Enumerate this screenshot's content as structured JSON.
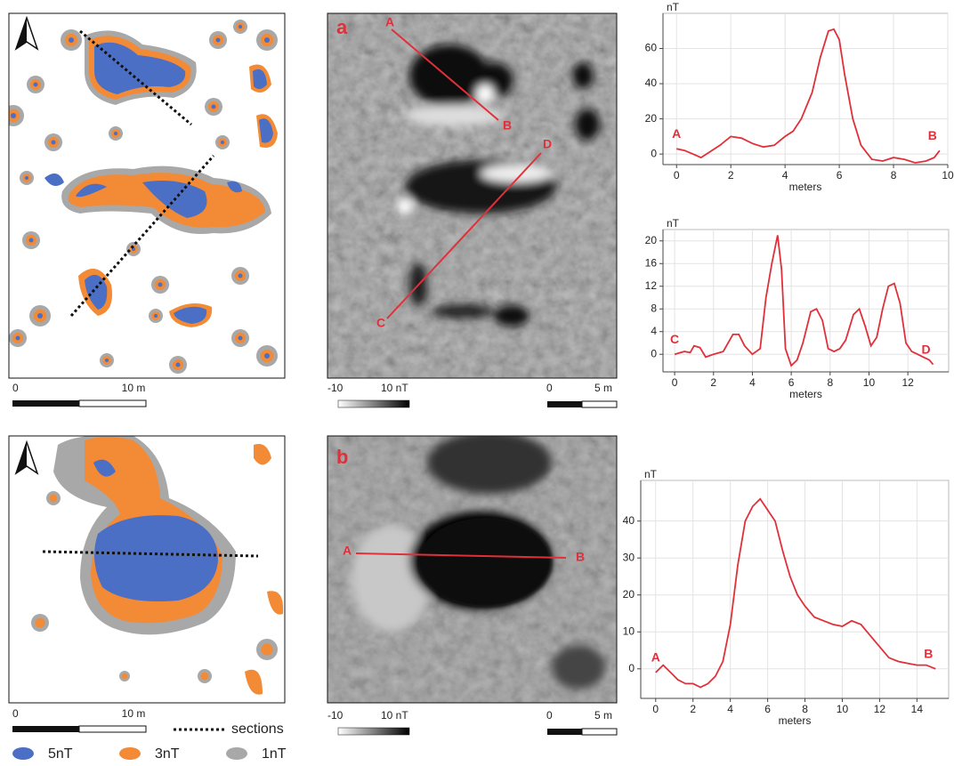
{
  "maps": {
    "panel_labels": [
      "a",
      "b"
    ],
    "sections_top": [
      "A",
      "B",
      "C",
      "D"
    ],
    "sections_bottom": [
      "A",
      "B"
    ],
    "scale_map": [
      "0",
      "10 m"
    ],
    "scale_image": [
      "0",
      "5 m"
    ],
    "color_scale": [
      "-10",
      "10 nT"
    ],
    "sections_label": "sections",
    "legend": [
      {
        "name": "5nT",
        "color": "#4a6fc4"
      },
      {
        "name": "3nT",
        "color": "#f38a35"
      },
      {
        "name": "1nT",
        "color": "#a8a8a8"
      }
    ]
  },
  "chart_data": [
    {
      "type": "line",
      "y_label": "nT",
      "x_label": "meters",
      "color": "#e0303a",
      "annotations": [
        "A",
        "B"
      ],
      "x": [
        0,
        0.3,
        0.6,
        0.9,
        1.2,
        1.6,
        2,
        2.4,
        2.8,
        3.2,
        3.6,
        4,
        4.3,
        4.6,
        5,
        5.3,
        5.6,
        5.8,
        6,
        6.2,
        6.5,
        6.8,
        7.2,
        7.6,
        8,
        8.4,
        8.8,
        9.2,
        9.5,
        9.7
      ],
      "values": [
        3,
        2,
        0,
        -2,
        1,
        5,
        10,
        9,
        6,
        4,
        5,
        10,
        13,
        20,
        35,
        55,
        70,
        71,
        65,
        45,
        20,
        5,
        -3,
        -4,
        -2,
        -3,
        -5,
        -4,
        -2,
        2
      ],
      "xlim": [
        -0.5,
        10
      ],
      "ylim": [
        -6,
        80
      ],
      "xticks": [
        0,
        2,
        4,
        6,
        8,
        10
      ],
      "yticks": [
        0,
        20,
        40,
        60
      ],
      "grid": true
    },
    {
      "type": "line",
      "y_label": "nT",
      "x_label": "meters",
      "color": "#e0303a",
      "annotations": [
        "C",
        "D"
      ],
      "x": [
        0,
        0.5,
        0.8,
        1,
        1.3,
        1.6,
        2,
        2.5,
        3,
        3.3,
        3.6,
        4,
        4.4,
        4.7,
        5,
        5.3,
        5.5,
        5.7,
        6,
        6.3,
        6.6,
        7,
        7.3,
        7.6,
        7.9,
        8.2,
        8.5,
        8.8,
        9.2,
        9.5,
        9.8,
        10.1,
        10.4,
        10.7,
        11,
        11.3,
        11.6,
        11.9,
        12.2,
        12.5,
        12.8,
        13.1,
        13.3
      ],
      "values": [
        0,
        0.5,
        0.3,
        1.5,
        1.2,
        -0.5,
        0,
        0.5,
        3.5,
        3.5,
        1.5,
        0,
        1,
        10,
        16,
        21,
        15,
        1,
        -2,
        -1,
        2,
        7.5,
        8,
        6,
        1,
        0.5,
        1,
        2.5,
        7,
        8,
        5,
        1.5,
        3,
        8,
        12,
        12.5,
        9,
        2,
        0.5,
        0,
        -0.5,
        -1,
        -1.8
      ],
      "xlim": [
        -0.6,
        14.1
      ],
      "ylim": [
        -3.1,
        22
      ],
      "xticks": [
        0,
        2,
        4,
        6,
        8,
        10,
        12
      ],
      "yticks": [
        0,
        4,
        8,
        12,
        16,
        20
      ],
      "grid": true
    },
    {
      "type": "line",
      "y_label": "nT",
      "x_label": "meters",
      "color": "#e0303a",
      "annotations": [
        "A",
        "B"
      ],
      "x": [
        0,
        0.4,
        0.8,
        1.2,
        1.6,
        2,
        2.4,
        2.8,
        3.2,
        3.6,
        4,
        4.4,
        4.8,
        5.2,
        5.6,
        6,
        6.4,
        6.8,
        7.2,
        7.6,
        8,
        8.5,
        9,
        9.5,
        10,
        10.5,
        11,
        11.5,
        12,
        12.5,
        13,
        13.5,
        14,
        14.5,
        15
      ],
      "values": [
        -1,
        1,
        -1,
        -3,
        -4,
        -4,
        -5,
        -4,
        -2,
        2,
        12,
        28,
        40,
        44,
        46,
        43,
        40,
        32,
        25,
        20,
        17,
        14,
        13,
        12,
        11.5,
        13,
        12,
        9,
        6,
        3,
        2,
        1.5,
        1,
        1,
        0
      ],
      "xlim": [
        -0.8,
        15.7
      ],
      "ylim": [
        -8,
        51
      ],
      "xticks": [
        0,
        2,
        4,
        6,
        8,
        10,
        12,
        14
      ],
      "yticks": [
        0,
        10,
        20,
        30,
        40
      ],
      "grid": true
    }
  ]
}
